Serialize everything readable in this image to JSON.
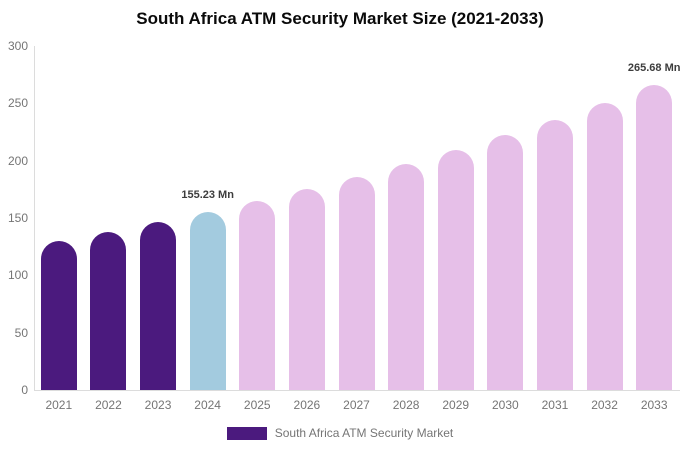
{
  "title": "South Africa ATM Security Market Size (2021-2033)",
  "legend": {
    "label": "South Africa ATM Security Market"
  },
  "colors": {
    "historical_bar": "#4b1a7e",
    "base_year_bar": "#a3cbdf",
    "forecast_bar": "#e6bfe8",
    "axis_line": "#dcdcdc",
    "tick_text": "#757575",
    "annotation_text": "#3d3d3d"
  },
  "chart_data": {
    "type": "bar",
    "title": "South Africa ATM Security Market Size (2021-2033)",
    "categories": [
      "2021",
      "2022",
      "2023",
      "2024",
      "2025",
      "2026",
      "2027",
      "2028",
      "2029",
      "2030",
      "2031",
      "2032",
      "2033"
    ],
    "values": [
      129.8,
      137.8,
      146.2,
      155.23,
      164.8,
      174.9,
      185.7,
      197.1,
      209.2,
      222.1,
      235.7,
      250.2,
      265.68
    ],
    "bar_color_roles": [
      "historical_bar",
      "historical_bar",
      "historical_bar",
      "base_year_bar",
      "forecast_bar",
      "forecast_bar",
      "forecast_bar",
      "forecast_bar",
      "forecast_bar",
      "forecast_bar",
      "forecast_bar",
      "forecast_bar",
      "forecast_bar"
    ],
    "annotations": [
      {
        "category": "2024",
        "text": "155.23 Mn"
      },
      {
        "category": "2033",
        "text": "265.68 Mn"
      }
    ],
    "xlabel": "",
    "ylabel": "",
    "ylim": [
      0,
      300
    ],
    "yticks": [
      0,
      50,
      100,
      150,
      200,
      250,
      300
    ],
    "grid": false,
    "legend_position": "bottom",
    "legend_entries": [
      "South Africa ATM Security Market"
    ]
  }
}
